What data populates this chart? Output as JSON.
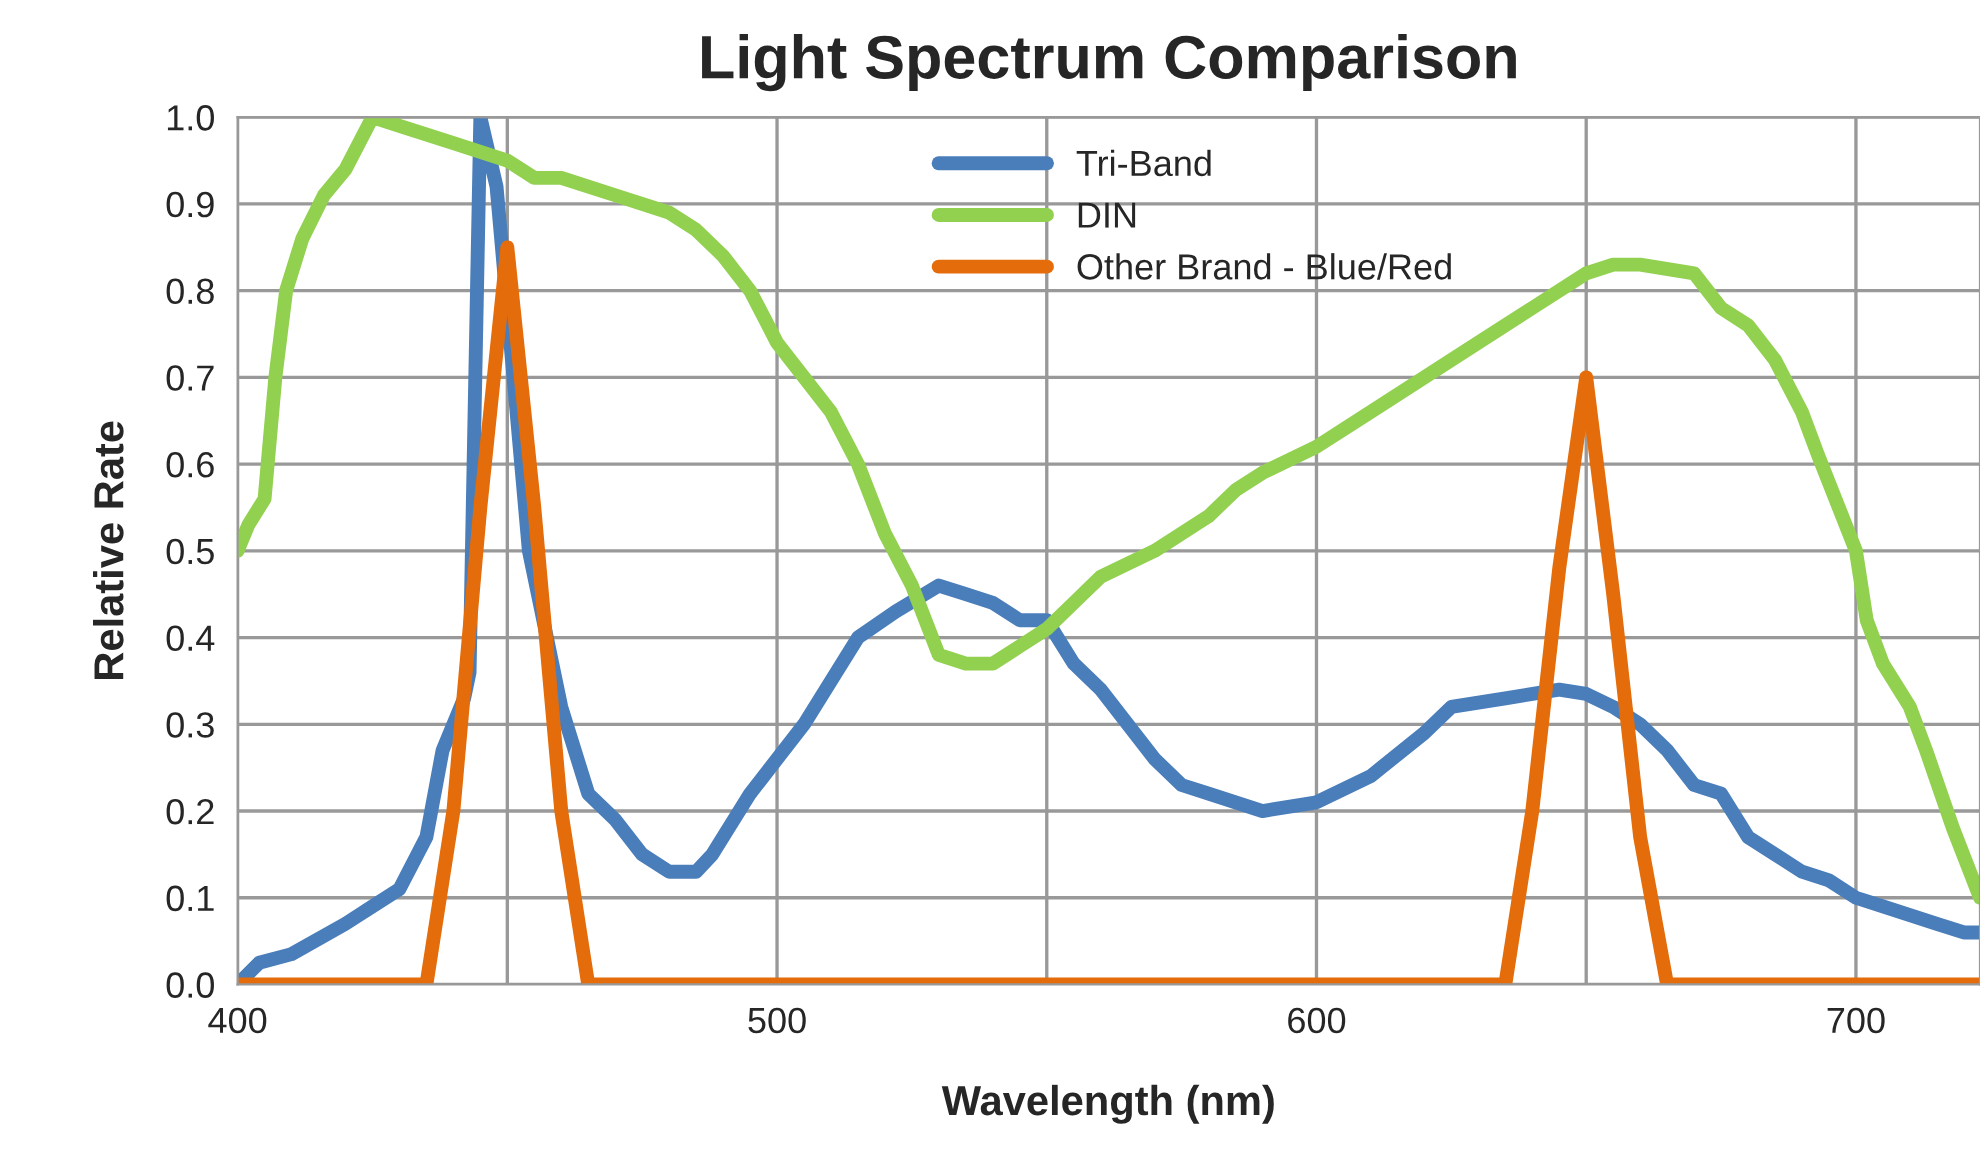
{
  "chart_data": {
    "type": "line",
    "title": "Light Spectrum Comparison",
    "xlabel": "Wavelength (nm)",
    "ylabel": "Relative Rate",
    "xlim": [
      400,
      723
    ],
    "ylim": [
      0,
      1
    ],
    "xticks": [
      400,
      {
        "value": 450,
        "label": null
      },
      500,
      {
        "value": 550,
        "label": null
      },
      600,
      {
        "value": 650,
        "label": null
      },
      700
    ],
    "yticks": [
      {
        "value": 0,
        "label": "0.0"
      },
      {
        "value": 0.1,
        "label": "0.1"
      },
      {
        "value": 0.2,
        "label": "0.2"
      },
      {
        "value": 0.3,
        "label": "0.3"
      },
      {
        "value": 0.4,
        "label": "0.4"
      },
      {
        "value": 0.5,
        "label": "0.5"
      },
      {
        "value": 0.6,
        "label": "0.6"
      },
      {
        "value": 0.7,
        "label": "0.7"
      },
      {
        "value": 0.8,
        "label": "0.8"
      },
      {
        "value": 0.9,
        "label": "0.9"
      },
      {
        "value": 1,
        "label": "1.0"
      }
    ],
    "grid": true,
    "legend": "top",
    "marker": "none",
    "line_style": "solid",
    "series": [
      {
        "name": "Tri-Band",
        "color": "#4a7ebb",
        "x": [
          400,
          404,
          410,
          420,
          425,
          430,
          435,
          438,
          442,
          443,
          445,
          448,
          450,
          454,
          460,
          465,
          470,
          475,
          480,
          485,
          488,
          495,
          505,
          515,
          522,
          530,
          535,
          540,
          545,
          550,
          555,
          560,
          565,
          570,
          575,
          580,
          590,
          600,
          610,
          620,
          625,
          635,
          645,
          650,
          655,
          660,
          665,
          670,
          675,
          680,
          685,
          690,
          695,
          700,
          705,
          710,
          715,
          720,
          723
        ],
        "values": [
          0.0,
          0.025,
          0.035,
          0.07,
          0.09,
          0.11,
          0.17,
          0.27,
          0.33,
          0.36,
          1.0,
          0.92,
          0.78,
          0.5,
          0.32,
          0.22,
          0.19,
          0.15,
          0.13,
          0.13,
          0.15,
          0.22,
          0.3,
          0.4,
          0.43,
          0.46,
          0.45,
          0.44,
          0.42,
          0.42,
          0.37,
          0.34,
          0.3,
          0.26,
          0.23,
          0.22,
          0.2,
          0.21,
          0.24,
          0.29,
          0.32,
          0.33,
          0.34,
          0.335,
          0.32,
          0.3,
          0.27,
          0.23,
          0.22,
          0.17,
          0.15,
          0.13,
          0.12,
          0.1,
          0.09,
          0.08,
          0.07,
          0.06,
          0.06
        ]
      },
      {
        "name": "DIN",
        "color": "#92d050",
        "x": [
          400,
          402,
          405,
          407,
          409,
          412,
          416,
          420,
          425,
          430,
          440,
          445,
          450,
          455,
          460,
          470,
          480,
          485,
          490,
          495,
          500,
          510,
          515,
          520,
          525,
          530,
          535,
          540,
          545,
          550,
          555,
          560,
          570,
          580,
          585,
          590,
          600,
          610,
          620,
          630,
          640,
          650,
          655,
          660,
          670,
          675,
          680,
          685,
          690,
          693,
          700,
          702,
          705,
          710,
          713,
          718,
          723
        ],
        "values": [
          0.5,
          0.53,
          0.56,
          0.7,
          0.8,
          0.86,
          0.91,
          0.94,
          1.0,
          0.99,
          0.97,
          0.96,
          0.95,
          0.93,
          0.93,
          0.91,
          0.89,
          0.87,
          0.84,
          0.8,
          0.74,
          0.66,
          0.6,
          0.52,
          0.46,
          0.38,
          0.37,
          0.37,
          0.39,
          0.41,
          0.44,
          0.47,
          0.5,
          0.54,
          0.57,
          0.59,
          0.62,
          0.66,
          0.7,
          0.74,
          0.78,
          0.82,
          0.83,
          0.83,
          0.82,
          0.78,
          0.76,
          0.72,
          0.66,
          0.61,
          0.5,
          0.42,
          0.37,
          0.32,
          0.27,
          0.18,
          0.1
        ]
      },
      {
        "name": "Other Brand - Blue/Red",
        "color": "#e46c0a",
        "x": [
          400,
          435,
          440,
          445,
          450,
          455,
          460,
          465,
          635,
          640,
          645,
          650,
          655,
          660,
          665,
          723
        ],
        "values": [
          0,
          0,
          0.2,
          0.55,
          0.85,
          0.55,
          0.2,
          0,
          0,
          0.2,
          0.48,
          0.7,
          0.45,
          0.17,
          0,
          0
        ]
      }
    ]
  }
}
